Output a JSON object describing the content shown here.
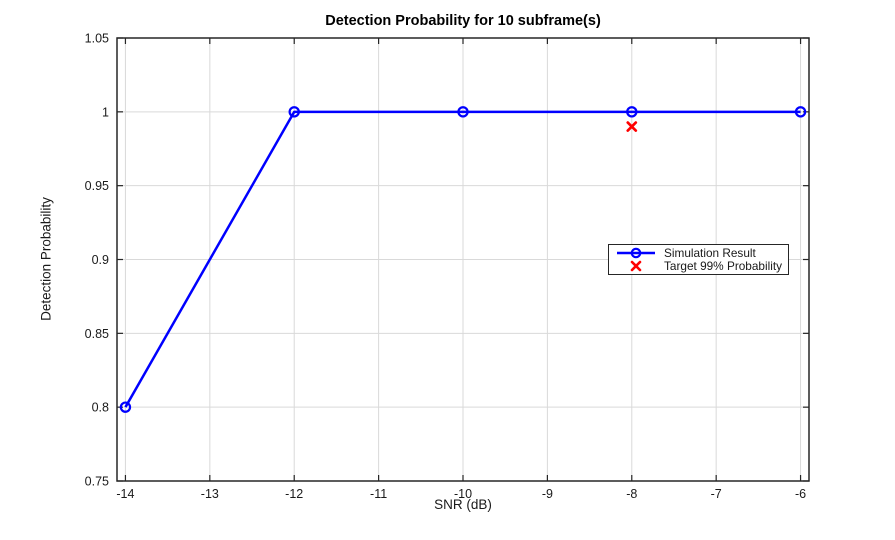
{
  "chart_data": {
    "type": "line",
    "title": "Detection Probability for 10 subframe(s)",
    "xlabel": "SNR (dB)",
    "ylabel": "Detection Probability",
    "xlim": [
      -14.1,
      -5.9
    ],
    "ylim": [
      0.75,
      1.05
    ],
    "grid": true,
    "legend_position": "inside right",
    "xticks": [
      {
        "value": -14,
        "label": "-14"
      },
      {
        "value": -13,
        "label": "-13"
      },
      {
        "value": -12,
        "label": "-12"
      },
      {
        "value": -11,
        "label": "-11"
      },
      {
        "value": -10,
        "label": "-10"
      },
      {
        "value": -9,
        "label": "-9"
      },
      {
        "value": -8,
        "label": "-8"
      },
      {
        "value": -7,
        "label": "-7"
      },
      {
        "value": -6,
        "label": "-6"
      }
    ],
    "yticks": [
      {
        "value": 0.75,
        "label": "0.75"
      },
      {
        "value": 0.8,
        "label": "0.8"
      },
      {
        "value": 0.85,
        "label": "0.85"
      },
      {
        "value": 0.9,
        "label": "0.9"
      },
      {
        "value": 0.95,
        "label": "0.95"
      },
      {
        "value": 1.0,
        "label": "1"
      },
      {
        "value": 1.05,
        "label": "1.05"
      }
    ],
    "colors": {
      "simulation": "#0000ff",
      "target": "#ff0000",
      "axis": "#262626",
      "grid": "#d9d9d9",
      "title": "#000000"
    },
    "series": [
      {
        "name": "Simulation Result",
        "plot_type": "line",
        "marker": "circle",
        "color_key": "simulation",
        "x": [
          -14,
          -12,
          -10,
          -8,
          -6
        ],
        "y": [
          0.8,
          1.0,
          1.0,
          1.0,
          1.0
        ]
      },
      {
        "name": "Target 99% Probability",
        "plot_type": "scatter",
        "marker": "x",
        "color_key": "target",
        "x": [
          -8
        ],
        "y": [
          0.99
        ]
      }
    ]
  }
}
